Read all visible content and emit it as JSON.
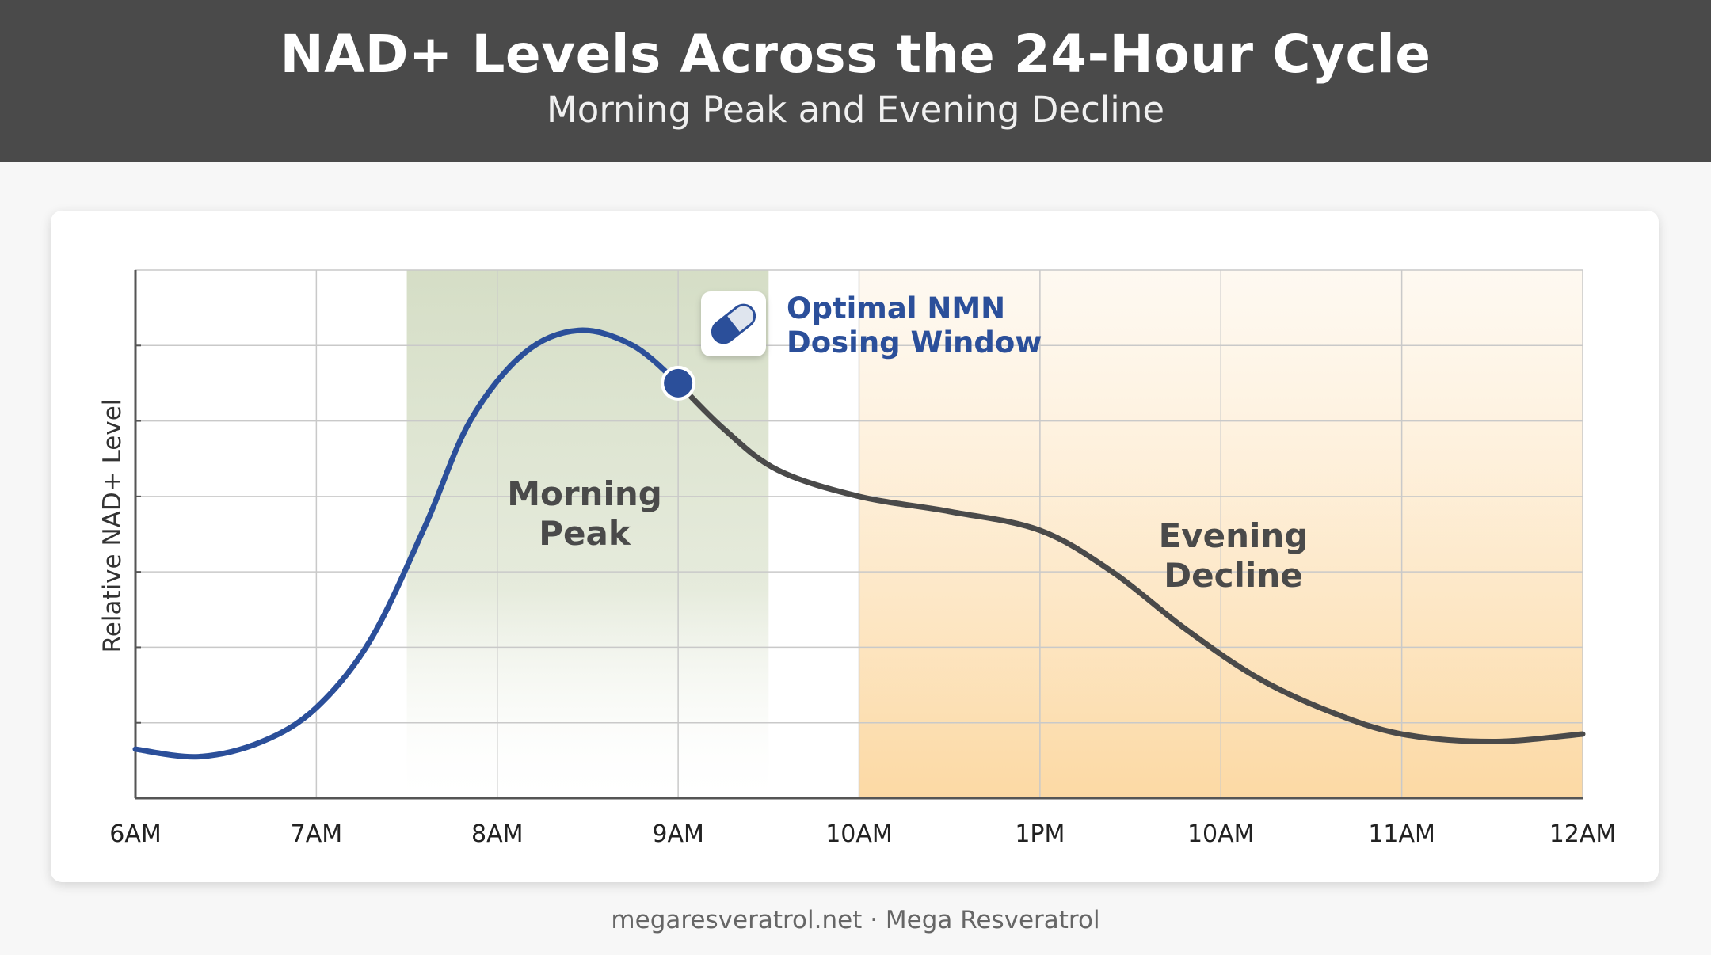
{
  "header": {
    "title": "NAD+ Levels Across the 24-Hour Cycle",
    "subtitle": "Morning Peak and Evening Decline"
  },
  "footer": {
    "text": "megaresveratrol.net · Mega Resveratrol"
  },
  "chart_data": {
    "type": "line",
    "title": "NAD+ Levels Across the 24-Hour Cycle",
    "subtitle": "Morning Peak and Evening Decline",
    "xlabel": "",
    "ylabel": "Relative NAD+ Level",
    "categories": [
      "6AM",
      "7AM",
      "8AM",
      "9AM",
      "10AM",
      "1PM",
      "10AM",
      "11AM",
      "12AM"
    ],
    "y_ticks_labeled": false,
    "ylim": [
      0,
      7
    ],
    "grid": true,
    "series": [
      {
        "color_before_dose": "#2b4f9a",
        "color_after_dose": "#4a4a4a",
        "points": [
          {
            "x": 0,
            "y": 0.65
          },
          {
            "x": 0.35,
            "y": 0.55
          },
          {
            "x": 0.7,
            "y": 0.75
          },
          {
            "x": 1.0,
            "y": 1.2
          },
          {
            "x": 1.3,
            "y": 2.1
          },
          {
            "x": 1.6,
            "y": 3.6
          },
          {
            "x": 1.85,
            "y": 5.0
          },
          {
            "x": 2.15,
            "y": 5.9
          },
          {
            "x": 2.45,
            "y": 6.2
          },
          {
            "x": 2.75,
            "y": 6.0
          },
          {
            "x": 3.0,
            "y": 5.5
          },
          {
            "x": 3.25,
            "y": 4.9
          },
          {
            "x": 3.55,
            "y": 4.35
          },
          {
            "x": 4.0,
            "y": 4.0
          },
          {
            "x": 4.5,
            "y": 3.8
          },
          {
            "x": 5.0,
            "y": 3.55
          },
          {
            "x": 5.4,
            "y": 3.0
          },
          {
            "x": 5.8,
            "y": 2.25
          },
          {
            "x": 6.2,
            "y": 1.6
          },
          {
            "x": 6.6,
            "y": 1.15
          },
          {
            "x": 7.0,
            "y": 0.85
          },
          {
            "x": 7.5,
            "y": 0.75
          },
          {
            "x": 8.0,
            "y": 0.85
          }
        ]
      }
    ],
    "dose_point": {
      "x": 3.0,
      "y": 5.5
    },
    "regions": [
      {
        "label_lines": [
          "Morning",
          "Peak"
        ],
        "x_start": 1.5,
        "x_end": 3.5,
        "color": "#d3dcc3"
      },
      {
        "label_lines": [
          "Evening",
          "Decline"
        ],
        "x_start": 4.0,
        "x_end": 8.0,
        "color": "#fde0b4"
      }
    ],
    "annotations": [
      {
        "label_lines": [
          "Optimal NMN",
          "Dosing Window"
        ],
        "icon": "pill-capsule-icon",
        "color": "#2b4f9a"
      }
    ]
  }
}
